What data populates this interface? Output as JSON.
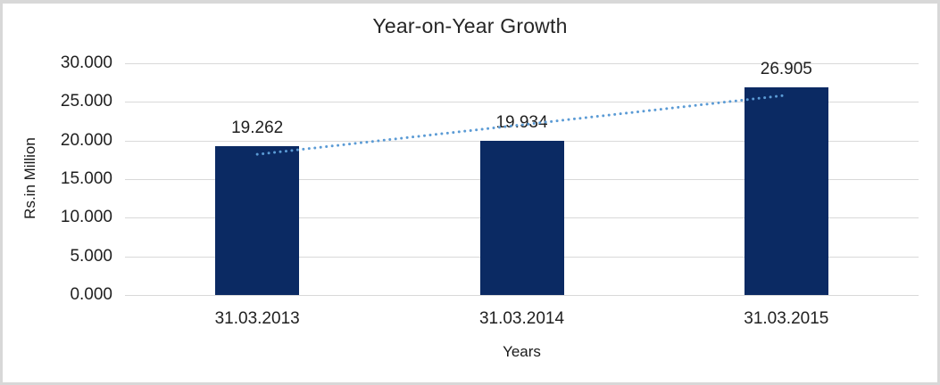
{
  "chart_data": {
    "type": "bar",
    "title": "Year-on-Year Growth",
    "categories": [
      "31.03.2013",
      "31.03.2014",
      "31.03.2015"
    ],
    "values": [
      19.262,
      19.934,
      26.905
    ],
    "value_labels": [
      "19.262",
      "19.934",
      "26.905"
    ],
    "xlabel": "Years",
    "ylabel": "Rs.in Million",
    "ylim": [
      0,
      30
    ],
    "yticks": [
      {
        "value": 30,
        "label": "30.000"
      },
      {
        "value": 25,
        "label": "25.000"
      },
      {
        "value": 20,
        "label": "20.000"
      },
      {
        "value": 15,
        "label": "15.000"
      },
      {
        "value": 10,
        "label": "10.000"
      },
      {
        "value": 5,
        "label": "5.000"
      },
      {
        "value": 0,
        "label": "0.000"
      }
    ],
    "grid": true,
    "legend": "none",
    "trendline": {
      "type": "linear",
      "style": "dotted",
      "start_value": 18.21,
      "end_value": 25.86
    },
    "colors": {
      "bar": "#0b2a63",
      "trendline": "#5b9bd5",
      "gridline": "#d9d9d9",
      "text": "#262626",
      "frame_border": "#d8d8d8",
      "background": "#ffffff"
    }
  }
}
